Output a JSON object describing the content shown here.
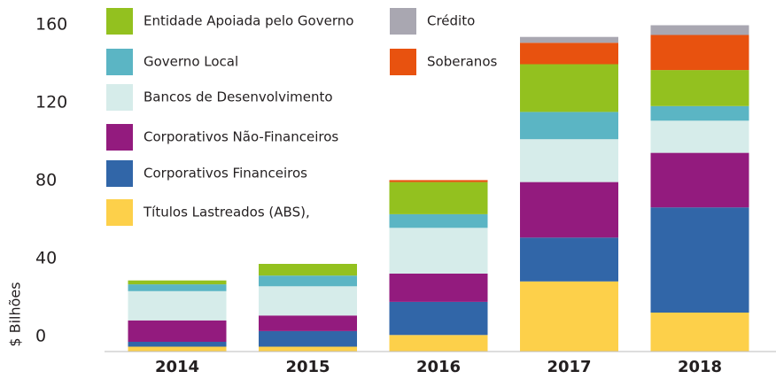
{
  "chart_data": {
    "type": "bar",
    "stacked": true,
    "y_label": "$ Bilhões",
    "categories": [
      "2014",
      "2015",
      "2016",
      "2017",
      "2018"
    ],
    "ylim": [
      0,
      170
    ],
    "yticks": [
      0,
      40,
      80,
      120,
      160
    ],
    "series": [
      {
        "name": "Títulos Lastreados (ABS),",
        "color": "#fdd04a",
        "values": [
          2.5,
          2.5,
          8.5,
          36,
          20
        ]
      },
      {
        "name": "Corporativos Financeiros",
        "color": "#3166a8",
        "values": [
          2.5,
          8,
          17,
          22.5,
          54
        ]
      },
      {
        "name": "Corporativos Não-Financeiros",
        "color": "#931b7e",
        "values": [
          11,
          8,
          14.5,
          28.5,
          28
        ]
      },
      {
        "name": "Bancos de Desenvolvimento",
        "color": "#d6ecea",
        "values": [
          15,
          15,
          23.5,
          22,
          16.5
        ]
      },
      {
        "name": "Governo Local",
        "color": "#5bb5c4",
        "values": [
          3.5,
          5.5,
          7,
          14,
          7.5
        ]
      },
      {
        "name": "Entidade Apoiada pelo Governo",
        "color": "#93c11f",
        "values": [
          2,
          6,
          16.5,
          24.5,
          18.5
        ]
      },
      {
        "name": "Soberanos",
        "color": "#e8520f",
        "values": [
          0,
          0,
          1,
          11,
          18
        ]
      },
      {
        "name": "Crédito",
        "color": "#a9a7b1",
        "values": [
          0,
          0,
          0,
          3,
          5
        ]
      }
    ]
  }
}
